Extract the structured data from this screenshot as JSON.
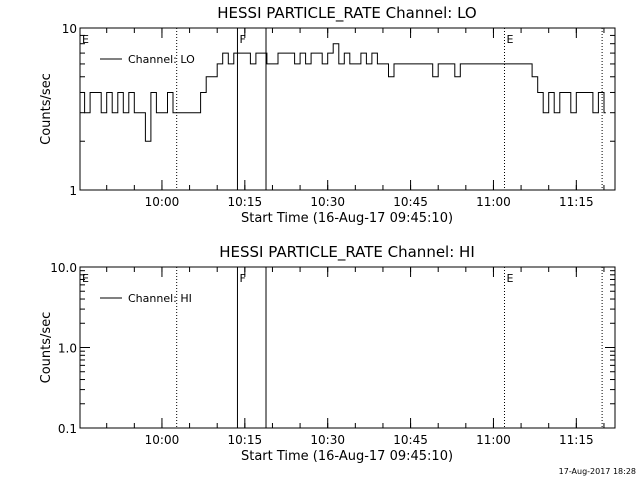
{
  "chart_data": [
    {
      "type": "line",
      "title": "HESSI PARTICLE_RATE Channel: LO",
      "xlabel": "Start Time (16-Aug-17 09:45:10)",
      "ylabel": "Counts/sec",
      "yscale": "log",
      "xlim": [
        "09:45:10",
        "11:22:00"
      ],
      "ylim": [
        1,
        10
      ],
      "x_ticks": [
        "10:00",
        "10:15",
        "10:30",
        "10:45",
        "11:00",
        "11:15"
      ],
      "y_ticks": [
        "1",
        "10"
      ],
      "legend": {
        "placement": "top-left",
        "entries": [
          "Channel: LO"
        ]
      },
      "series": [
        {
          "name": "Channel: LO",
          "x": [
            "09:45:10",
            "09:46",
            "09:47",
            "09:48",
            "09:49",
            "09:50",
            "09:51",
            "09:52",
            "09:53",
            "09:54",
            "09:55",
            "09:56",
            "09:57",
            "09:58",
            "09:59",
            "10:00",
            "10:01",
            "10:02",
            "10:03",
            "10:04",
            "10:05",
            "10:06",
            "10:07",
            "10:08",
            "10:09",
            "10:10",
            "10:11",
            "10:12",
            "10:13",
            "10:14",
            "10:15",
            "10:16",
            "10:17",
            "10:18",
            "10:19",
            "10:20",
            "10:21",
            "10:22",
            "10:23",
            "10:24",
            "10:25",
            "10:26",
            "10:27",
            "10:28",
            "10:29",
            "10:30",
            "10:31",
            "10:32",
            "10:33",
            "10:34",
            "10:35",
            "10:36",
            "10:37",
            "10:38",
            "10:39",
            "10:40",
            "10:41",
            "10:42",
            "10:43",
            "10:44",
            "10:45",
            "10:46",
            "10:47",
            "10:48",
            "10:49",
            "10:50",
            "10:51",
            "10:52",
            "10:53",
            "10:54",
            "10:55",
            "10:56",
            "10:57",
            "10:58",
            "10:59",
            "11:00",
            "11:01",
            "11:02",
            "11:03",
            "11:04",
            "11:05",
            "11:06",
            "11:07",
            "11:08",
            "11:09",
            "11:10",
            "11:11",
            "11:12",
            "11:13",
            "11:14",
            "11:15",
            "11:16",
            "11:17",
            "11:18",
            "11:19",
            "11:20"
          ],
          "values": [
            4,
            3,
            4,
            4,
            3,
            4,
            3,
            4,
            3,
            4,
            3,
            3,
            2,
            4,
            3,
            3,
            4,
            3,
            3,
            3,
            3,
            3,
            4,
            5,
            5,
            6,
            7,
            6,
            7,
            7,
            7,
            6,
            7,
            7,
            6,
            6,
            7,
            7,
            7,
            6,
            7,
            6,
            7,
            7,
            6,
            7,
            8,
            6,
            7,
            6,
            6,
            7,
            6,
            7,
            6,
            6,
            5,
            6,
            6,
            6,
            6,
            6,
            6,
            6,
            5,
            6,
            6,
            6,
            5,
            6,
            6,
            6,
            6,
            6,
            6,
            6,
            6,
            6,
            6,
            6,
            6,
            6,
            5,
            4,
            3,
            4,
            3,
            4,
            4,
            3,
            4,
            4,
            4,
            3,
            4,
            3
          ]
        }
      ],
      "markers": [
        {
          "time": "09:45:10",
          "label": "E"
        },
        {
          "time": "10:02:40",
          "label": ""
        },
        {
          "time": "10:13:40",
          "label": "F"
        },
        {
          "time": "10:18:50",
          "label": ""
        },
        {
          "time": "11:02:00",
          "label": "E"
        },
        {
          "time": "11:19:40",
          "label": ""
        }
      ]
    },
    {
      "type": "line",
      "title": "HESSI PARTICLE_RATE Channel: HI",
      "xlabel": "Start Time (16-Aug-17 09:45:10)",
      "ylabel": "Counts/sec",
      "yscale": "log",
      "xlim": [
        "09:45:10",
        "11:22:00"
      ],
      "ylim": [
        0.1,
        10
      ],
      "x_ticks": [
        "10:00",
        "10:15",
        "10:30",
        "10:45",
        "11:00",
        "11:15"
      ],
      "y_ticks": [
        "0.1",
        "1.0",
        "10.0"
      ],
      "legend": {
        "placement": "top-left",
        "entries": [
          "Channel: HI"
        ]
      },
      "series": [
        {
          "name": "Channel: HI",
          "x": [],
          "values": []
        }
      ],
      "markers": [
        {
          "time": "09:45:10",
          "label": "E"
        },
        {
          "time": "10:02:40",
          "label": ""
        },
        {
          "time": "10:13:40",
          "label": "F"
        },
        {
          "time": "10:18:50",
          "label": ""
        },
        {
          "time": "11:02:00",
          "label": "E"
        },
        {
          "time": "11:19:40",
          "label": ""
        }
      ]
    }
  ],
  "timestamp": "17-Aug-2017 18:28"
}
